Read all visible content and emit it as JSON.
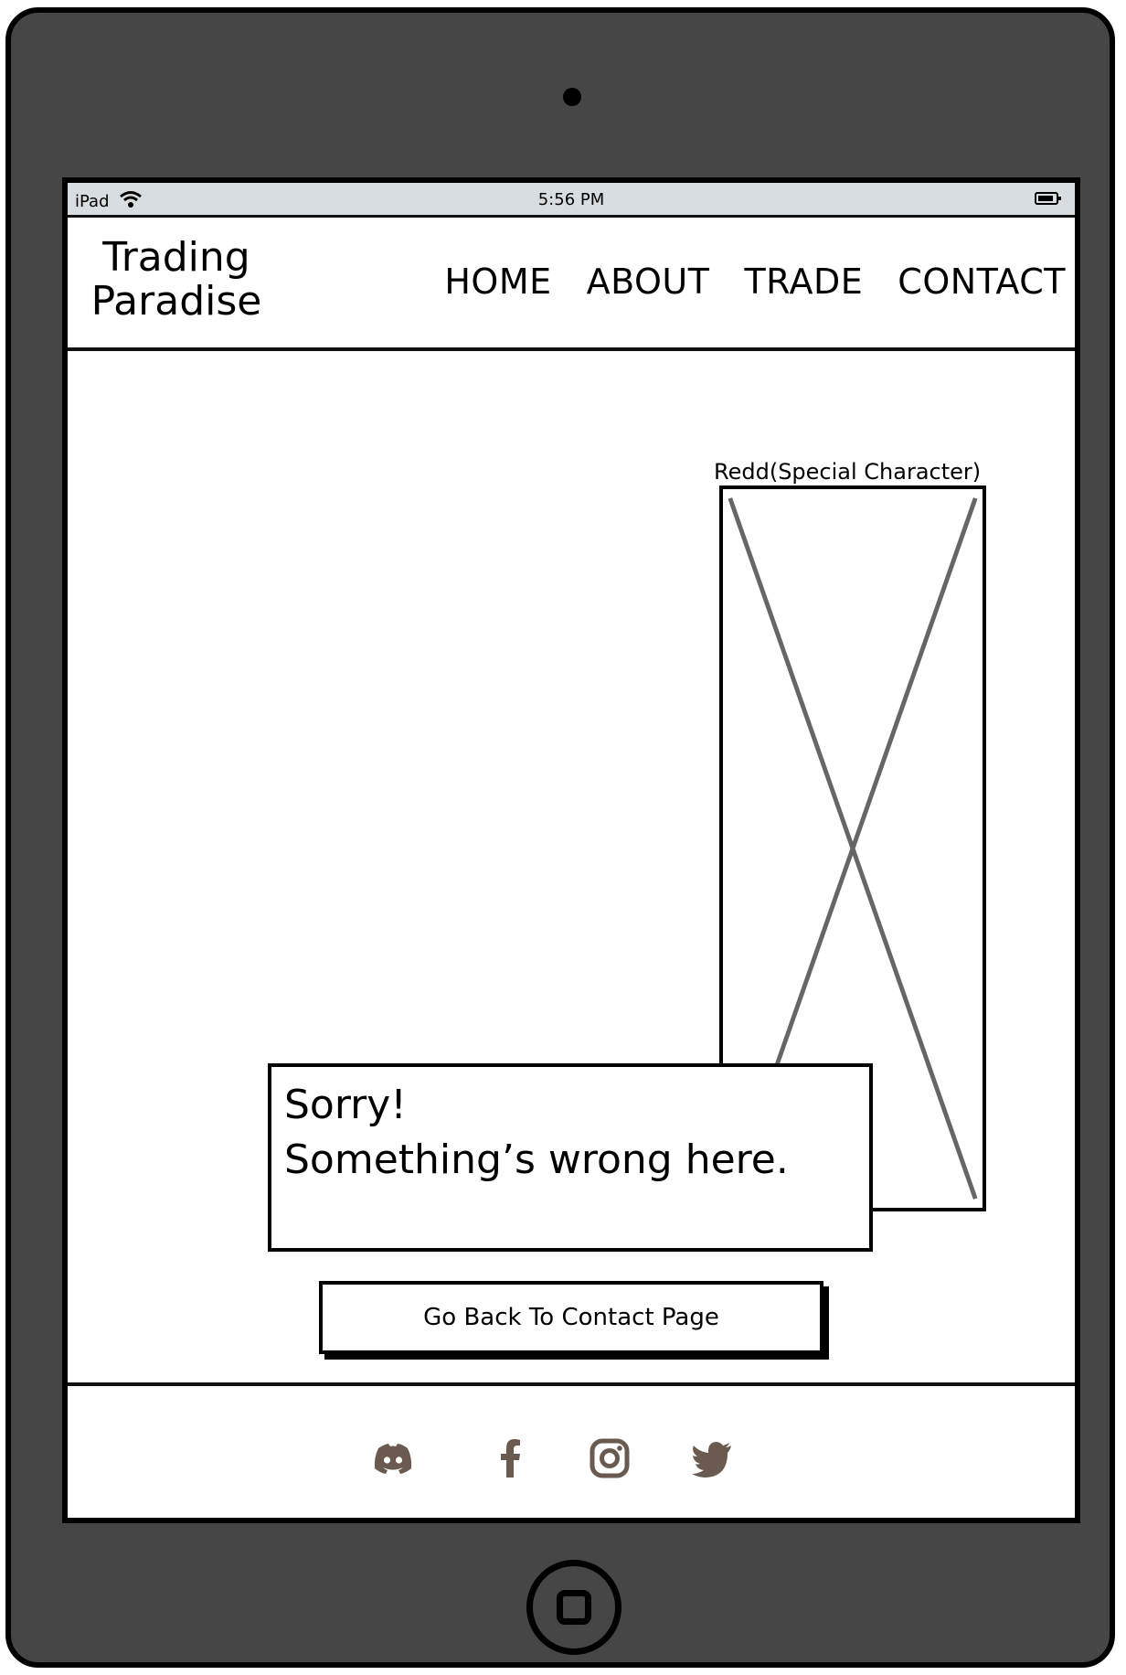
{
  "status_bar": {
    "device": "iPad",
    "time": "5:56 PM"
  },
  "header": {
    "brand_line1": "Trading",
    "brand_line2": "Paradise",
    "nav": [
      "HOME",
      "ABOUT",
      "TRADE",
      "CONTACT"
    ]
  },
  "main": {
    "image_label": "Redd(Special Character)",
    "error_line1": "Sorry!",
    "error_line2": "Something’s wrong here.",
    "back_button_label": "Go Back To Contact Page"
  },
  "footer": {
    "icons": [
      "discord-icon",
      "facebook-icon",
      "instagram-icon",
      "twitter-icon"
    ]
  },
  "colors": {
    "device_frame": "#464646",
    "status_bar_bg": "#d7dde1",
    "social_icon": "#6b5a4f",
    "placeholder_cross": "#666666"
  }
}
